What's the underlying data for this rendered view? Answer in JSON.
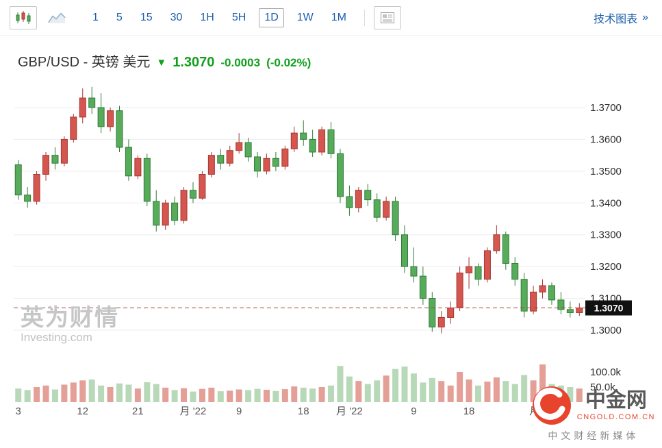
{
  "toolbar": {
    "timeframes": [
      "1",
      "5",
      "15",
      "30",
      "1H",
      "5H",
      "1D",
      "1W",
      "1M"
    ],
    "active_timeframe": "1D",
    "tech_chart_label": "技术图表",
    "tech_chart_chevron": "»"
  },
  "header": {
    "instrument": "GBP/USD - 英镑 美元",
    "direction_arrow": "▼",
    "price": "1.3070",
    "change": "-0.0003",
    "change_pct": "(-0.02%)"
  },
  "watermark": {
    "cn": "英为财情",
    "en": "Investing.com"
  },
  "logo": {
    "name": "中金网",
    "domain": "CNGOLD.COM.CN",
    "tagline": "中文财经新媒体"
  },
  "colors": {
    "up_fill": "#d4564e",
    "up_stroke": "#a43732",
    "down_fill": "#57ab5a",
    "down_stroke": "#2f7c37",
    "volume_up": "#e49f97",
    "volume_down": "#b7d9b8",
    "accent_blue": "#1a5dad",
    "quote_green": "#12a01e",
    "price_line": "#a33b36",
    "badge_bg": "#111111",
    "grid": "#ececec",
    "logo_red": "#e8432d"
  },
  "chart_data": {
    "type": "candlestick",
    "symbol": "GBP/USD",
    "interval": "1D",
    "current_price": 1.307,
    "current_price_label": "1.3070",
    "price_ticks": [
      {
        "value": 1.37,
        "label": "1.3700"
      },
      {
        "value": 1.36,
        "label": "1.3600"
      },
      {
        "value": 1.35,
        "label": "1.3500"
      },
      {
        "value": 1.34,
        "label": "1.3400"
      },
      {
        "value": 1.33,
        "label": "1.3300"
      },
      {
        "value": 1.32,
        "label": "1.3200"
      },
      {
        "value": 1.31,
        "label": "1.3100"
      },
      {
        "value": 1.3,
        "label": "1.3000"
      }
    ],
    "volume_ticks": [
      {
        "value": 100,
        "label": "100.0k"
      },
      {
        "value": 50,
        "label": "50.0k"
      }
    ],
    "x_labels": [
      {
        "idx": 0,
        "label": "3"
      },
      {
        "idx": 7,
        "label": "12"
      },
      {
        "idx": 13,
        "label": "21"
      },
      {
        "idx": 19,
        "label": "月 '22"
      },
      {
        "idx": 24,
        "label": "9"
      },
      {
        "idx": 31,
        "label": "18"
      },
      {
        "idx": 36,
        "label": "月 '22"
      },
      {
        "idx": 43,
        "label": "9"
      },
      {
        "idx": 49,
        "label": "18"
      },
      {
        "idx": 57,
        "label": "月 '22"
      }
    ],
    "candles": [
      [
        1.352,
        1.3535,
        1.341,
        1.3425,
        45
      ],
      [
        1.3425,
        1.345,
        1.3385,
        1.3405,
        40
      ],
      [
        1.3405,
        1.35,
        1.3395,
        1.349,
        50
      ],
      [
        1.349,
        1.356,
        1.347,
        1.355,
        55
      ],
      [
        1.355,
        1.3575,
        1.3505,
        1.3525,
        42
      ],
      [
        1.3525,
        1.361,
        1.3515,
        1.36,
        58
      ],
      [
        1.36,
        1.368,
        1.359,
        1.367,
        65
      ],
      [
        1.367,
        1.376,
        1.365,
        1.373,
        72
      ],
      [
        1.373,
        1.3765,
        1.368,
        1.37,
        75
      ],
      [
        1.37,
        1.3745,
        1.362,
        1.364,
        55
      ],
      [
        1.364,
        1.37,
        1.3625,
        1.369,
        50
      ],
      [
        1.369,
        1.3705,
        1.356,
        1.3575,
        62
      ],
      [
        1.3575,
        1.36,
        1.347,
        1.3485,
        58
      ],
      [
        1.3485,
        1.355,
        1.3475,
        1.354,
        45
      ],
      [
        1.354,
        1.3555,
        1.339,
        1.3405,
        66
      ],
      [
        1.3405,
        1.344,
        1.331,
        1.333,
        60
      ],
      [
        1.333,
        1.341,
        1.3315,
        1.34,
        48
      ],
      [
        1.34,
        1.342,
        1.333,
        1.3345,
        40
      ],
      [
        1.3345,
        1.345,
        1.3335,
        1.344,
        46
      ],
      [
        1.344,
        1.3465,
        1.34,
        1.3415,
        35
      ],
      [
        1.3415,
        1.35,
        1.341,
        1.349,
        44
      ],
      [
        1.349,
        1.356,
        1.348,
        1.355,
        48
      ],
      [
        1.355,
        1.357,
        1.3505,
        1.3525,
        36
      ],
      [
        1.3525,
        1.358,
        1.3515,
        1.3565,
        38
      ],
      [
        1.3565,
        1.362,
        1.3555,
        1.359,
        42
      ],
      [
        1.359,
        1.3605,
        1.353,
        1.3545,
        40
      ],
      [
        1.3545,
        1.356,
        1.348,
        1.35,
        44
      ],
      [
        1.35,
        1.3555,
        1.349,
        1.354,
        41
      ],
      [
        1.354,
        1.356,
        1.35,
        1.3515,
        37
      ],
      [
        1.3515,
        1.358,
        1.3505,
        1.357,
        43
      ],
      [
        1.357,
        1.364,
        1.356,
        1.362,
        52
      ],
      [
        1.362,
        1.366,
        1.358,
        1.36,
        48
      ],
      [
        1.36,
        1.363,
        1.3545,
        1.356,
        45
      ],
      [
        1.356,
        1.364,
        1.355,
        1.363,
        50
      ],
      [
        1.363,
        1.3655,
        1.354,
        1.3555,
        55
      ],
      [
        1.3555,
        1.357,
        1.34,
        1.342,
        120
      ],
      [
        1.342,
        1.3455,
        1.336,
        1.3385,
        85
      ],
      [
        1.3385,
        1.345,
        1.337,
        1.344,
        70
      ],
      [
        1.344,
        1.346,
        1.339,
        1.341,
        60
      ],
      [
        1.341,
        1.343,
        1.334,
        1.3355,
        72
      ],
      [
        1.3355,
        1.342,
        1.3345,
        1.3405,
        88
      ],
      [
        1.3405,
        1.342,
        1.328,
        1.33,
        110
      ],
      [
        1.33,
        1.333,
        1.318,
        1.32,
        118
      ],
      [
        1.32,
        1.326,
        1.315,
        1.317,
        95
      ],
      [
        1.317,
        1.32,
        1.308,
        1.31,
        65
      ],
      [
        1.31,
        1.312,
        1.2995,
        1.301,
        80
      ],
      [
        1.301,
        1.306,
        1.299,
        1.304,
        70
      ],
      [
        1.304,
        1.309,
        1.302,
        1.307,
        55
      ],
      [
        1.307,
        1.32,
        1.306,
        1.318,
        100
      ],
      [
        1.318,
        1.323,
        1.313,
        1.32,
        75
      ],
      [
        1.32,
        1.321,
        1.314,
        1.316,
        55
      ],
      [
        1.316,
        1.326,
        1.315,
        1.325,
        68
      ],
      [
        1.325,
        1.333,
        1.324,
        1.33,
        82
      ],
      [
        1.33,
        1.331,
        1.319,
        1.321,
        70
      ],
      [
        1.321,
        1.323,
        1.314,
        1.316,
        60
      ],
      [
        1.316,
        1.318,
        1.304,
        1.306,
        90
      ],
      [
        1.306,
        1.314,
        1.305,
        1.312,
        72
      ],
      [
        1.312,
        1.316,
        1.31,
        1.314,
        125
      ],
      [
        1.314,
        1.315,
        1.308,
        1.3095,
        60
      ],
      [
        1.3095,
        1.312,
        1.305,
        1.3065,
        55
      ],
      [
        1.3065,
        1.309,
        1.304,
        1.3055,
        50
      ],
      [
        1.3055,
        1.3085,
        1.3045,
        1.307,
        45
      ]
    ]
  }
}
